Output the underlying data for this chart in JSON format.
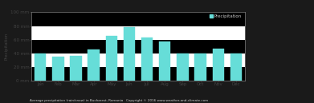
{
  "title": "Average precipitation (rain/snow) in Bucharest, Romania   Copyright © 2016 www.weather-and-climate.com",
  "ylabel": "Precipitation",
  "bar_color": "#66DDD8",
  "background_color": "#1a1a1a",
  "plot_bg_color": "#ffffff",
  "stripe_color": "#000000",
  "months": [
    "Jan",
    "Feb",
    "Mar",
    "Apr",
    "May",
    "Jun",
    "Jul",
    "Aug",
    "Sep",
    "Oct",
    "Nov",
    "Dec"
  ],
  "values": [
    40,
    35,
    36,
    45,
    65,
    78,
    63,
    57,
    40,
    40,
    47,
    40
  ],
  "ylim": [
    0,
    100
  ],
  "yticks": [
    0,
    20,
    40,
    60,
    80,
    100
  ],
  "ytick_labels": [
    "0 mm",
    "20 mm",
    "40 mm",
    "60 mm",
    "80 mm",
    "100 mm"
  ],
  "legend_label": "Precipitation",
  "legend_color": "#66DDD8",
  "text_color": "#444444",
  "outer_text_color": "#cccccc",
  "figsize": [
    3.91,
    1.29
  ],
  "dpi": 100
}
